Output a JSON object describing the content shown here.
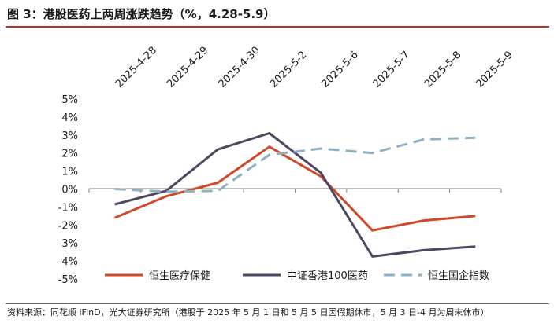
{
  "title": "图 3：港股医药上两周涨跌趋势（%，4.28-5.9）",
  "source": "资料来源：同花顺 iFinD，光大证券研究所（港股于 2025 年 5 月 1 日和 5 月 5 日因假期休市，5 月 3 日-4 月为周末休市）",
  "colors": {
    "title_rule": "#b5322c",
    "axis": "#7f7f7f"
  },
  "chart_data": {
    "type": "line",
    "title": "",
    "xlabel": "",
    "ylabel": "",
    "categories": [
      "2025-4-28",
      "2025-4-29",
      "2025-4-30",
      "2025-5-2",
      "2025-5-6",
      "2025-5-7",
      "2025-5-8",
      "2025-5-9"
    ],
    "ylim": [
      -5,
      5
    ],
    "y_ticks": [
      "5%",
      "4%",
      "3%",
      "2%",
      "1%",
      "0%",
      "-1%",
      "-2%",
      "-3%",
      "-4%",
      "-5%"
    ],
    "grid": false,
    "legend_placement": "bottom",
    "series": [
      {
        "name": "恒生医疗保健",
        "color": "#d0482a",
        "dash": "solid",
        "values": [
          -1.6,
          -0.4,
          0.35,
          2.35,
          0.7,
          -2.3,
          -1.75,
          -1.5
        ]
      },
      {
        "name": "中证香港100医药",
        "color": "#4e4763",
        "dash": "solid",
        "values": [
          -0.85,
          -0.1,
          2.2,
          3.1,
          0.9,
          -3.75,
          -3.4,
          -3.2
        ]
      },
      {
        "name": "恒生国企指数",
        "color": "#8fb0c2",
        "dash": "dashed",
        "values": [
          0.0,
          -0.15,
          -0.1,
          1.9,
          2.25,
          2.0,
          2.75,
          2.85
        ]
      }
    ]
  }
}
